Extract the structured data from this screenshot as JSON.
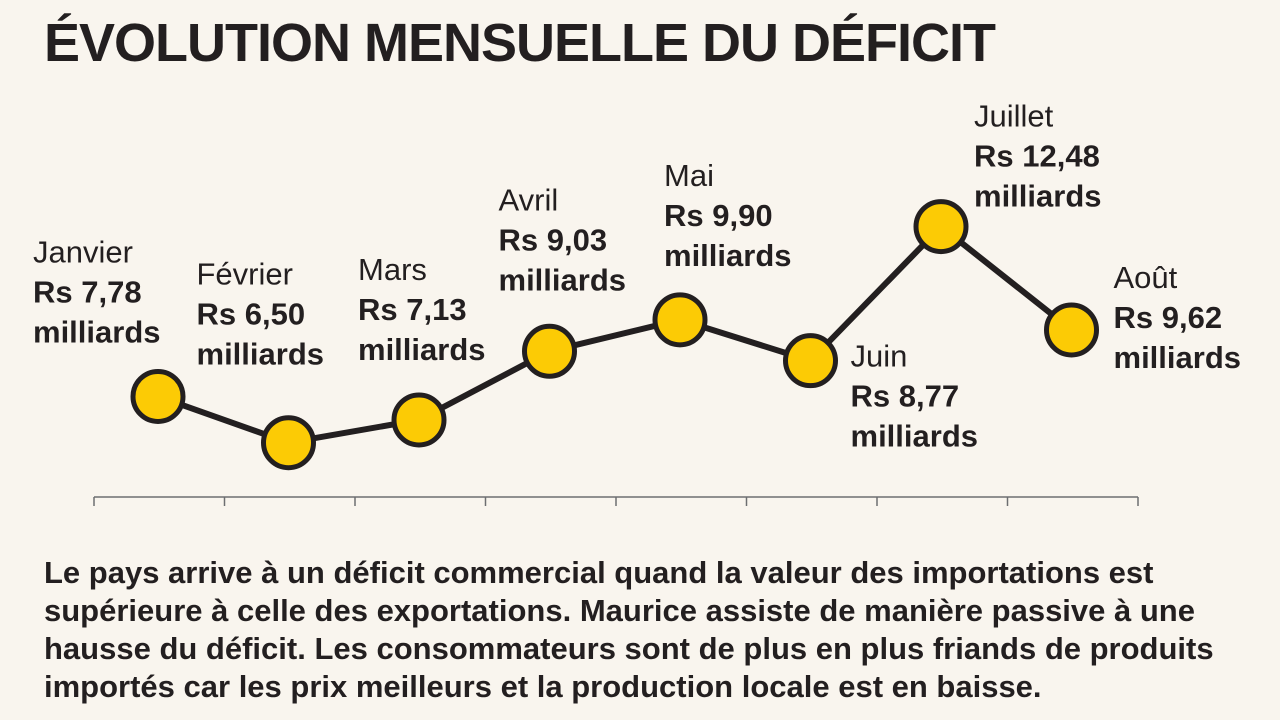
{
  "title": "ÉVOLUTION MENSUELLE DU DÉFICIT",
  "colors": {
    "background": "#f9f5ee",
    "marker_fill": "#fccb05",
    "line": "#231f20",
    "text": "#231f20"
  },
  "chart_data": {
    "type": "line",
    "title": "ÉVOLUTION MENSUELLE DU DÉFICIT",
    "categories": [
      "Janvier",
      "Février",
      "Mars",
      "Avril",
      "Mai",
      "Juin",
      "Juillet",
      "Août"
    ],
    "values": [
      7.78,
      6.5,
      7.13,
      9.03,
      9.9,
      8.77,
      12.48,
      9.62
    ],
    "value_labels": [
      "Rs 7,78",
      "Rs 6,50",
      "Rs 7,13",
      "Rs 9,03",
      "Rs 9,90",
      "Rs 8,77",
      "Rs 12,48",
      "Rs 9,62"
    ],
    "unit_label": "milliards",
    "ylim": [
      4.5,
      12.8
    ],
    "grid": false,
    "legend": "none"
  },
  "caption": "Le pays arrive à un déficit commercial quand la valeur des importations est supérieure à celle des exportations. Maurice assiste de manière passive à une hausse du déficit. Les consommateurs sont de plus en plus friands de produits importés car les prix meilleurs et la production locale est en baisse."
}
